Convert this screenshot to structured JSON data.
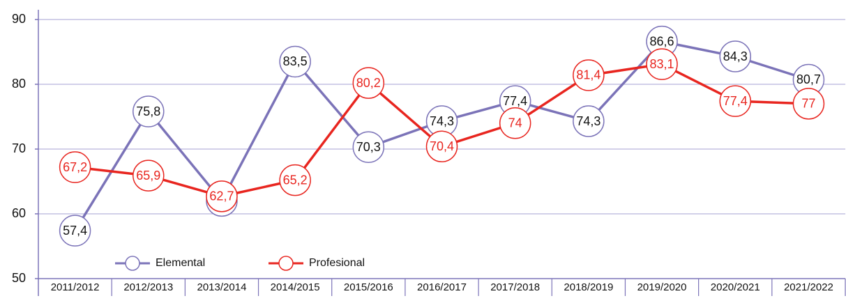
{
  "chart_data": {
    "type": "line",
    "categories": [
      "2011/2012",
      "2012/2013",
      "2013/2014",
      "2014/2015",
      "2015/2016",
      "2016/2017",
      "2017/2018",
      "2018/2019",
      "2019/2020",
      "2020/2021",
      "2021/2022"
    ],
    "series": [
      {
        "name": "Elemental",
        "color": "#7b73b8",
        "label_color": "#111111",
        "values": [
          57.4,
          75.8,
          62,
          83.5,
          70.3,
          74.3,
          77.4,
          74.3,
          86.6,
          84.3,
          80.7
        ],
        "value_labels": [
          "57,4",
          "75,8",
          "62",
          "83,5",
          "70,3",
          "74,3",
          "77,4",
          "74,3",
          "86,6",
          "84,3",
          "80,7"
        ]
      },
      {
        "name": "Profesional",
        "color": "#e8251f",
        "label_color": "#e8251f",
        "values": [
          67.2,
          65.9,
          62.7,
          65.2,
          80.2,
          70.4,
          74,
          81.4,
          83.1,
          77.4,
          77
        ],
        "value_labels": [
          "67,2",
          "65,9",
          "62,7",
          "65,2",
          "80,2",
          "70,4",
          "74",
          "81,4",
          "83,1",
          "77,4",
          "77"
        ]
      }
    ],
    "ylim": [
      50,
      90
    ],
    "yticks": [
      50,
      60,
      70,
      80,
      90
    ],
    "grid": true,
    "legend": "bottom-left"
  }
}
